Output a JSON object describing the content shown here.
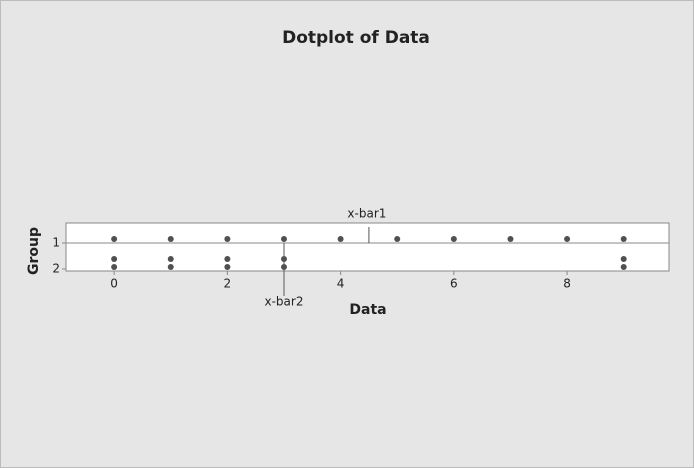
{
  "chart_data": {
    "type": "dotplot",
    "title": "Dotplot of Data",
    "x_label": "Data",
    "y_label": "Group",
    "series": [
      {
        "name": "1",
        "color": "#505050",
        "values": [
          0,
          1,
          2,
          3,
          4,
          5,
          6,
          7,
          8,
          9
        ]
      },
      {
        "name": "2",
        "color": "#505050",
        "values": [
          0,
          0,
          1,
          1,
          2,
          2,
          3,
          3,
          9,
          9
        ]
      }
    ],
    "reference_lines": [
      {
        "label": "x-bar1",
        "value": 4.5
      },
      {
        "label": "x-bar2",
        "value": 3
      }
    ],
    "xlim": [
      -0.85,
      9.8
    ],
    "xticks": [
      0,
      2,
      4,
      6,
      8
    ]
  }
}
